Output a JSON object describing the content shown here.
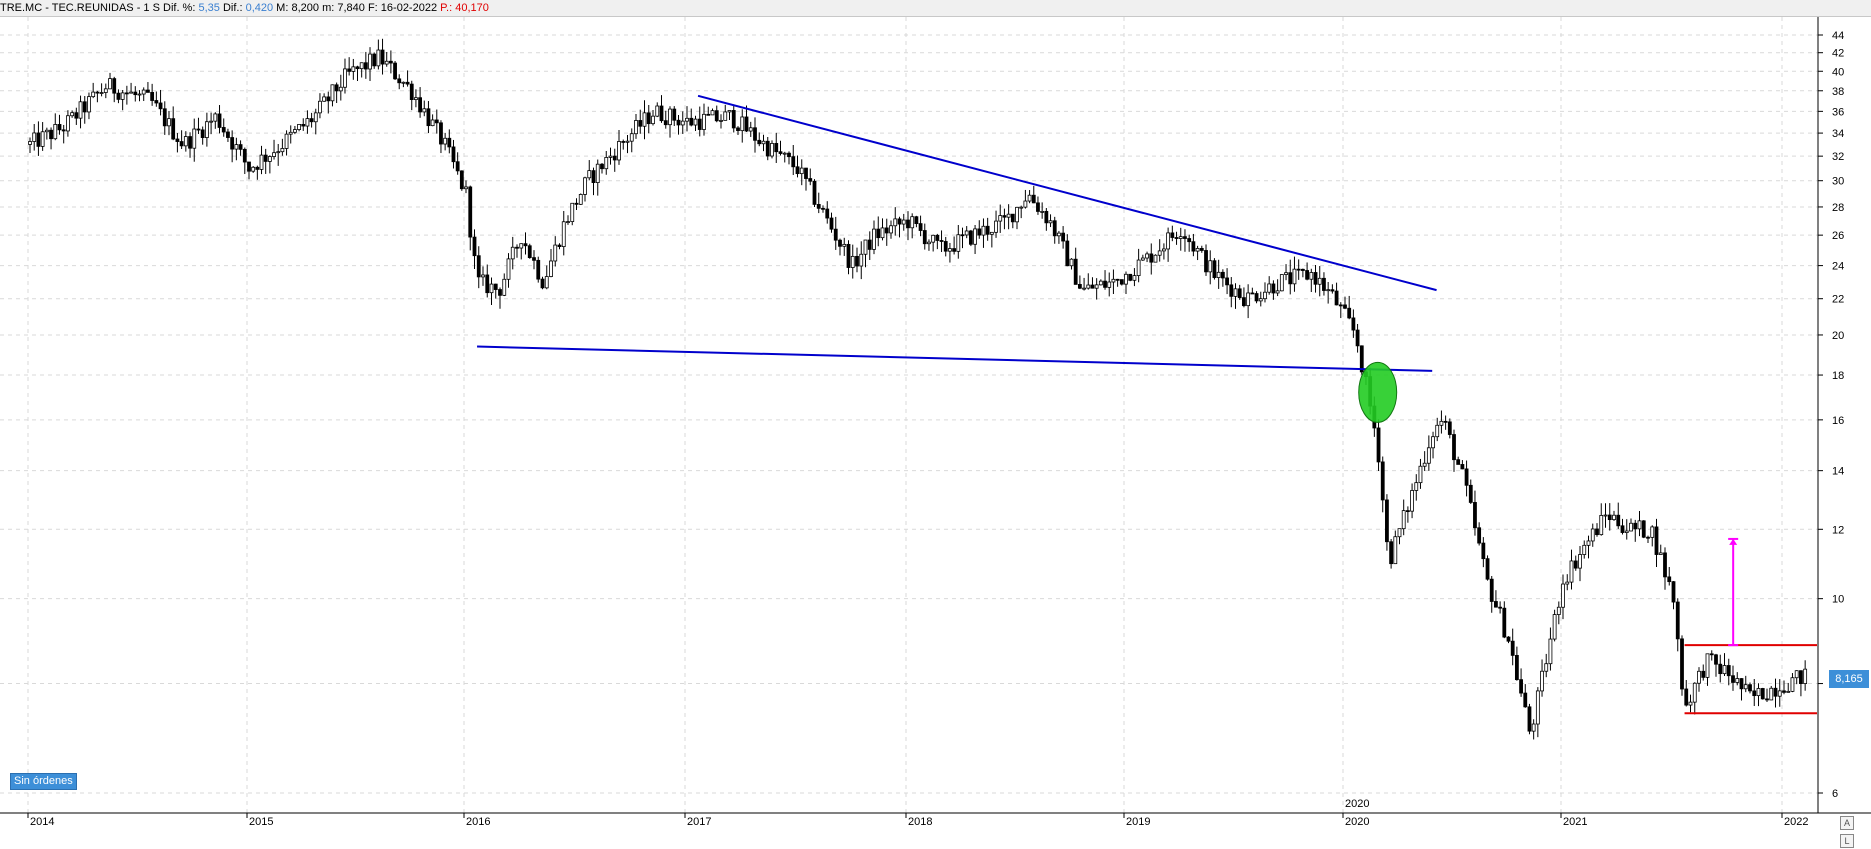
{
  "header": {
    "symbol": "TRE.MC - TEC.REUNIDAS -  1 S",
    "dif_pct_label": "Dif. %:",
    "dif_pct": "5,35",
    "dif_label": "Dif.:",
    "dif": "0,420",
    "max_label": "M:",
    "max": "8,200",
    "min_label": "m:",
    "min": "7,840",
    "date_label": "F:",
    "date": "16-02-2022",
    "p_label": "P.:",
    "p": "40,170"
  },
  "badges": {
    "no_orders": "Sin órdenes",
    "last_price": "8,165",
    "year_marker": "2020"
  },
  "chart_data": {
    "type": "candlestick",
    "scale": "log",
    "ylim": [
      5.7,
      46
    ],
    "y_ticks": [
      6,
      8,
      10,
      12,
      14,
      16,
      18,
      20,
      22,
      24,
      26,
      28,
      30,
      32,
      34,
      36,
      38,
      40,
      42,
      44
    ],
    "y_tick_labels_shown": [
      "6",
      "10",
      "12",
      "14",
      "16",
      "18",
      "20",
      "22",
      "24",
      "26",
      "28",
      "30",
      "32",
      "34",
      "36",
      "38",
      "40",
      "42",
      "44"
    ],
    "x_labels": [
      "2014",
      "2015",
      "2016",
      "2017",
      "2018",
      "2019",
      "2020",
      "2021",
      "2022"
    ],
    "last_price": 8.165,
    "closes_approx": [
      [
        2014.0,
        33
      ],
      [
        2014.15,
        34.5
      ],
      [
        2014.35,
        38.5
      ],
      [
        2014.55,
        37
      ],
      [
        2014.7,
        33
      ],
      [
        2014.85,
        35.5
      ],
      [
        2015.0,
        31
      ],
      [
        2015.15,
        33
      ],
      [
        2015.3,
        35.5
      ],
      [
        2015.45,
        39.5
      ],
      [
        2015.6,
        41.5
      ],
      [
        2015.75,
        38
      ],
      [
        2015.9,
        33
      ],
      [
        2016.0,
        29
      ],
      [
        2016.05,
        23
      ],
      [
        2016.15,
        22.5
      ],
      [
        2016.25,
        26
      ],
      [
        2016.35,
        23
      ],
      [
        2016.45,
        27
      ],
      [
        2016.55,
        30
      ],
      [
        2016.7,
        33
      ],
      [
        2016.85,
        36
      ],
      [
        2017.0,
        35
      ],
      [
        2017.2,
        35.5
      ],
      [
        2017.35,
        33
      ],
      [
        2017.5,
        31
      ],
      [
        2017.6,
        28
      ],
      [
        2017.75,
        24
      ],
      [
        2017.85,
        26
      ],
      [
        2018.0,
        27
      ],
      [
        2018.15,
        25
      ],
      [
        2018.3,
        26
      ],
      [
        2018.45,
        27
      ],
      [
        2018.55,
        29
      ],
      [
        2018.65,
        27
      ],
      [
        2018.8,
        22.5
      ],
      [
        2018.95,
        23
      ],
      [
        2019.1,
        24.5
      ],
      [
        2019.25,
        26.5
      ],
      [
        2019.4,
        23.5
      ],
      [
        2019.55,
        22
      ],
      [
        2019.7,
        23
      ],
      [
        2019.85,
        23.5
      ],
      [
        2019.95,
        22
      ],
      [
        2020.05,
        20
      ],
      [
        2020.15,
        15
      ],
      [
        2020.2,
        11
      ],
      [
        2020.3,
        13
      ],
      [
        2020.4,
        15.5
      ],
      [
        2020.45,
        16
      ],
      [
        2020.55,
        13.5
      ],
      [
        2020.65,
        10.5
      ],
      [
        2020.75,
        9
      ],
      [
        2020.85,
        7
      ],
      [
        2020.9,
        8
      ],
      [
        2021.0,
        10.5
      ],
      [
        2021.1,
        11.5
      ],
      [
        2021.2,
        12.5
      ],
      [
        2021.3,
        12
      ],
      [
        2021.4,
        12
      ],
      [
        2021.5,
        10
      ],
      [
        2021.55,
        7.5
      ],
      [
        2021.65,
        8.5
      ],
      [
        2021.75,
        8.2
      ],
      [
        2021.85,
        7.7
      ],
      [
        2022.0,
        8
      ],
      [
        2022.1,
        8.165
      ]
    ],
    "drawings": {
      "upper_trendline": [
        [
          2017.05,
          37.5
        ],
        [
          2020.42,
          22.5
        ]
      ],
      "lower_trendline": [
        [
          2016.05,
          19.4
        ],
        [
          2020.4,
          18.2
        ]
      ],
      "support_line": [
        [
          2021.55,
          7.4
        ],
        [
          2022.15,
          7.4
        ]
      ],
      "resistance_line": [
        [
          2021.55,
          8.85
        ],
        [
          2022.15,
          8.85
        ]
      ],
      "target_arrow": [
        [
          2021.77,
          8.85
        ],
        [
          2021.77,
          11.7
        ]
      ],
      "breakout_marker": [
        2020.15,
        17.2
      ]
    },
    "colors": {
      "candles": "#000000",
      "trendlines": "#0000cc",
      "horizontal_levels": "#e00000",
      "target_arrow": "#ff00ff",
      "breakout_marker": "#22cc22",
      "grid": "#d9d9d9"
    },
    "grid": true
  }
}
